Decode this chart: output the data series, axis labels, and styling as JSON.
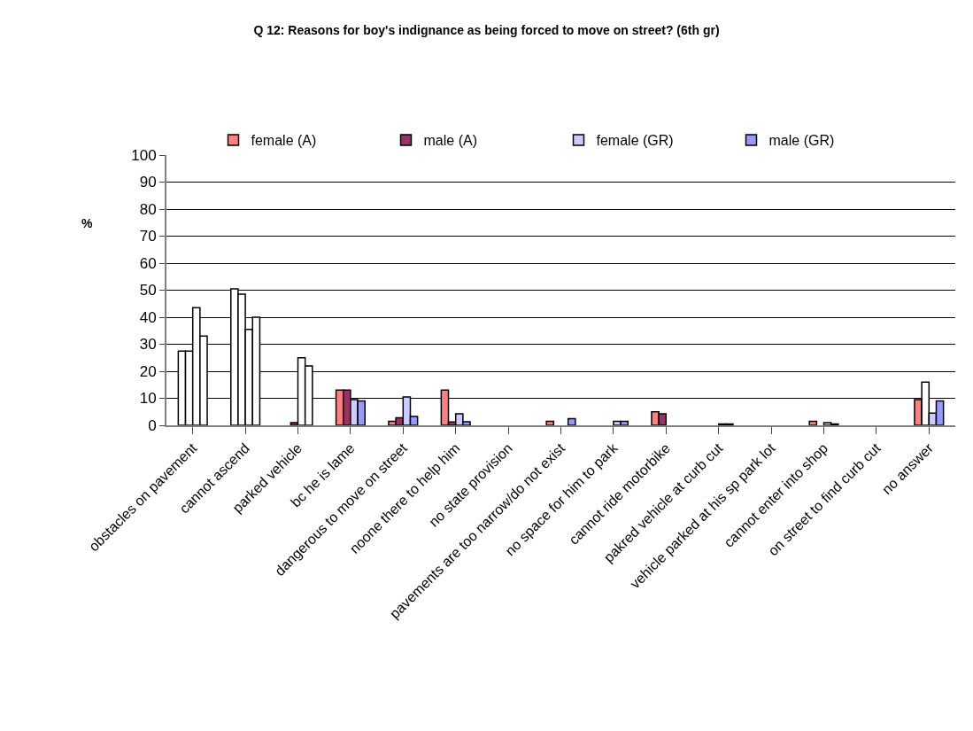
{
  "chart_data": {
    "type": "bar",
    "title": "Q 12: Reasons for boy's indignance as being forced to move on street? (6th gr)",
    "ylabel": "%",
    "categories": [
      "obstacles on pavement",
      "cannot ascend",
      "parked vehicle",
      "bc he is lame",
      "dangerous to move on street",
      "noone there to help him",
      "no state provision",
      "pavements are too narrow/do not exist",
      "no space for him to park",
      "cannot ride motorbike",
      "pakred vehicle at curb cut",
      "vehicle parked at his sp park lot",
      "cannot enter into shop",
      "on street to find curb cut",
      "no answer"
    ],
    "series": [
      {
        "name": "female (A)",
        "color": "#ff8080",
        "colors": [
          "#ffffff",
          "#ffffff",
          "#ff8080",
          "#ff8080",
          "#ff8080",
          "#ff8080",
          "#ff8080",
          "#ff8080",
          "#ff8080",
          "#ff8080",
          "#ff8080",
          "#ff8080",
          "#ff8080",
          "#ff8080",
          "#ff8080"
        ],
        "values": [
          27.5,
          50.5,
          null,
          13,
          1.5,
          13,
          null,
          1.5,
          null,
          5,
          null,
          null,
          1.5,
          null,
          9.5
        ]
      },
      {
        "name": "male (A)",
        "color": "#993366",
        "colors": [
          "#ffffff",
          "#ffffff",
          "#993366",
          "#993366",
          "#993366",
          "#993366",
          "#993366",
          "#993366",
          "#993366",
          "#993366",
          "#993366",
          "#993366",
          "#993366",
          "#993366",
          "#ffffff"
        ],
        "values": [
          27.5,
          48.5,
          1,
          13,
          2.8,
          1.2,
          null,
          null,
          null,
          4.3,
          null,
          null,
          null,
          null,
          16
        ]
      },
      {
        "name": "female (GR)",
        "color": "#ccccff",
        "colors": [
          "#ffffff",
          "#ffffff",
          "#ffffff",
          "#ccccff",
          "#ccccff",
          "#ccccff",
          "#ccccff",
          "#ccccff",
          "#ccccff",
          "#ccccff",
          "#ccccff",
          "#ccccff",
          "#ccccff",
          "#ccccff",
          "#ccccff"
        ],
        "values": [
          43.5,
          35.5,
          25,
          9.5,
          10.5,
          4.3,
          null,
          null,
          1.5,
          null,
          0.5,
          null,
          1,
          null,
          4.5
        ]
      },
      {
        "name": "male (GR)",
        "color": "#9999ff",
        "colors": [
          "#ffffff",
          "#ffffff",
          "#ffffff",
          "#9999ff",
          "#9999ff",
          "#9999ff",
          "#9999ff",
          "#9999ff",
          "#9999ff",
          "#9999ff",
          "#9999ff",
          "#9999ff",
          "#9999ff",
          "#9999ff",
          "#9999ff"
        ],
        "values": [
          33,
          40,
          22,
          9,
          3.3,
          1.3,
          null,
          2.5,
          1.5,
          null,
          0.5,
          null,
          0.5,
          null,
          9
        ]
      }
    ],
    "ylim": [
      0,
      100
    ],
    "yticks": [
      0,
      10,
      20,
      30,
      40,
      50,
      60,
      70,
      80,
      90,
      100
    ],
    "grid": "y",
    "legend": "top"
  }
}
